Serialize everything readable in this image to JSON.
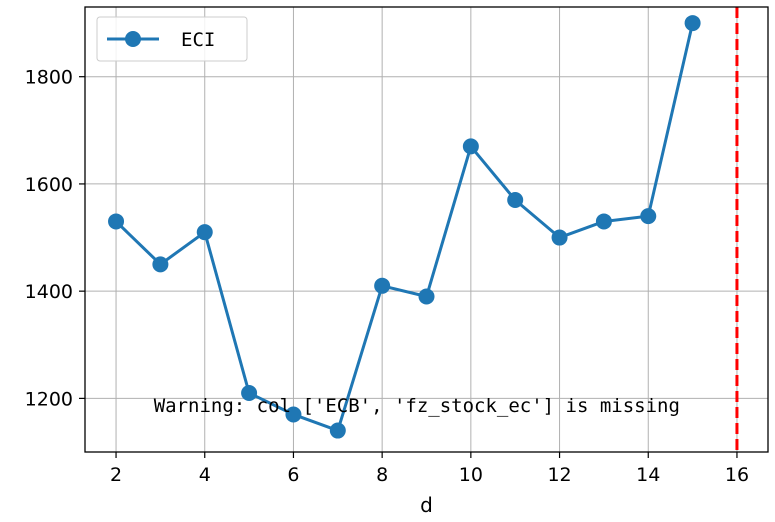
{
  "chart_data": {
    "type": "line",
    "x": [
      2,
      3,
      4,
      5,
      6,
      7,
      8,
      9,
      10,
      11,
      12,
      13,
      14,
      15
    ],
    "series": [
      {
        "name": "ECI",
        "color": "#1f77b4",
        "values": [
          1530,
          1450,
          1510,
          1210,
          1170,
          1140,
          1410,
          1390,
          1670,
          1570,
          1500,
          1530,
          1540,
          1900
        ]
      }
    ],
    "xlabel": "d",
    "ylabel": "",
    "xlim": [
      1.3,
      16.7
    ],
    "ylim": [
      1100,
      1930
    ],
    "xticks": [
      2,
      4,
      6,
      8,
      10,
      12,
      14,
      16
    ],
    "yticks": [
      1200,
      1400,
      1600,
      1800
    ],
    "grid": true,
    "legend_position": "top-left",
    "vline": {
      "x": 16,
      "color": "#ff0000",
      "style": "dashed"
    },
    "annotation": {
      "text": "Warning: col ['ECB', 'fz_stock_ec'] is missing",
      "x": 2.85,
      "y": 1175
    }
  }
}
